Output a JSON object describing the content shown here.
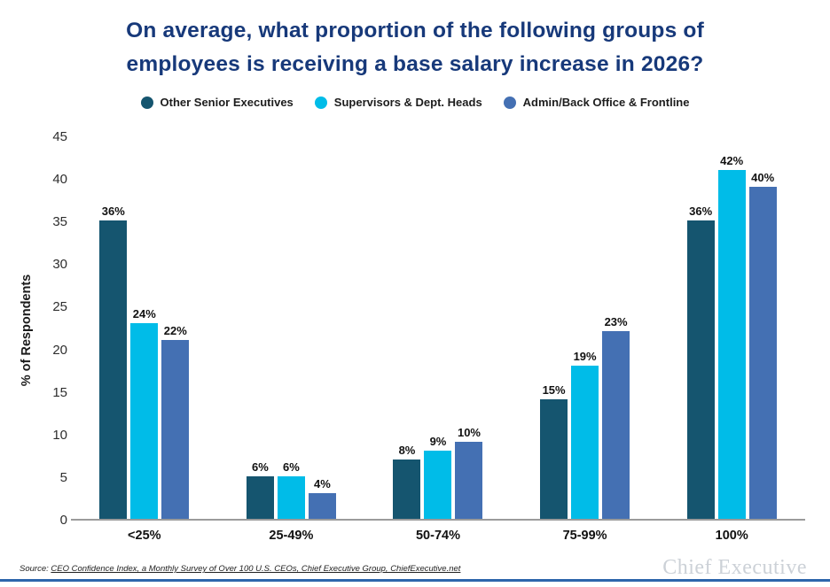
{
  "header": {
    "title_line1": "On average, what proportion of the following groups of",
    "title_line2": "employees is receiving a base salary increase in 2026?"
  },
  "chart_data": {
    "type": "bar",
    "title": "On average, what proportion of the following groups of employees is receiving a base salary increase in 2026?",
    "categories": [
      "<25%",
      "25-49%",
      "50-74%",
      "75-99%",
      "100%"
    ],
    "series": [
      {
        "name": "Other Senior Executives",
        "color": "#15556F",
        "values": [
          36,
          6,
          8,
          15,
          36
        ]
      },
      {
        "name": "Supervisors & Dept. Heads",
        "color": "#00BCE8",
        "values": [
          24,
          6,
          9,
          19,
          42
        ]
      },
      {
        "name": "Admin/Back Office & Frontline",
        "color": "#4470B3",
        "values": [
          22,
          4,
          10,
          23,
          40
        ]
      }
    ],
    "xlabel": "",
    "ylabel": "% of Respondents",
    "ylim": [
      0,
      45
    ],
    "yticks": [
      0,
      5,
      10,
      15,
      20,
      25,
      30,
      35,
      40,
      45
    ],
    "grid": false,
    "legend_position": "top",
    "value_label_suffix": "%",
    "bar_render_offset": -1
  },
  "footer": {
    "source_prefix": "Source:",
    "source_text": "CEO Confidence Index, a Monthly Survey of Over 100 U.S. CEOs, Chief Executive Group, ChiefExecutive.net",
    "logo_text": "Chief Executive"
  },
  "colors": {
    "title": "#17397A",
    "axis_line": "#9B9B9B",
    "bottom_accent": "#2D65AB"
  }
}
